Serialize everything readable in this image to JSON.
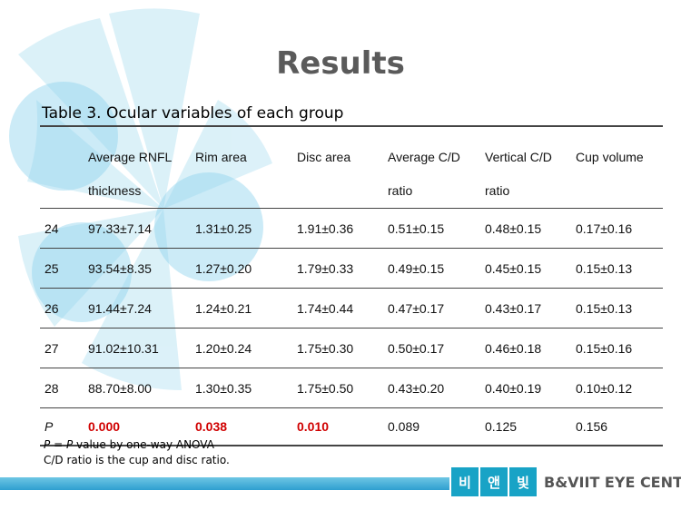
{
  "slide": {
    "title": "Results",
    "table_caption": "Table 3. Ocular variables of each group"
  },
  "table": {
    "headers": [
      {
        "line1": "",
        "line2": ""
      },
      {
        "line1": "Average  RNFL",
        "line2": "thickness"
      },
      {
        "line1": "Rim area",
        "line2": ""
      },
      {
        "line1": "Disc area",
        "line2": ""
      },
      {
        "line1": "Average  C/D",
        "line2": "ratio"
      },
      {
        "line1": "Vertical   C/D",
        "line2": "ratio"
      },
      {
        "line1": "Cup volume",
        "line2": ""
      }
    ],
    "rows": [
      [
        "24",
        "97.33±7.14",
        "1.31±0.25",
        "1.91±0.36",
        "0.51±0.15",
        "0.48±0.15",
        "0.17±0.16"
      ],
      [
        "25",
        "93.54±8.35",
        "1.27±0.20",
        "1.79±0.33",
        "0.49±0.15",
        "0.45±0.15",
        "0.15±0.13"
      ],
      [
        "26",
        "91.44±7.24",
        "1.24±0.21",
        "1.74±0.44",
        "0.47±0.17",
        "0.43±0.17",
        "0.15±0.13"
      ],
      [
        "27",
        "91.02±10.31",
        "1.20±0.24",
        "1.75±0.30",
        "0.50±0.17",
        "0.46±0.18",
        "0.15±0.16"
      ],
      [
        "28",
        "88.70±8.00",
        "1.30±0.35",
        "1.75±0.50",
        "0.43±0.20",
        "0.40±0.19",
        "0.10±0.12"
      ]
    ],
    "p_row": [
      "P",
      "0.000",
      "0.038",
      "0.010",
      "0.089",
      "0.125",
      "0.156"
    ],
    "significant_color": "#d00000"
  },
  "notes": {
    "p_symbol": "P",
    "line1_mid": " = ",
    "line1_end": " value by one-way ANOVA",
    "line2": "C/D ratio is the cup and disc ratio."
  },
  "footer": {
    "logo_chars": [
      "비",
      "앤",
      "빛"
    ],
    "center_name": "B&VIIT EYE CENTER",
    "bar_color": "#2f9fd0"
  }
}
